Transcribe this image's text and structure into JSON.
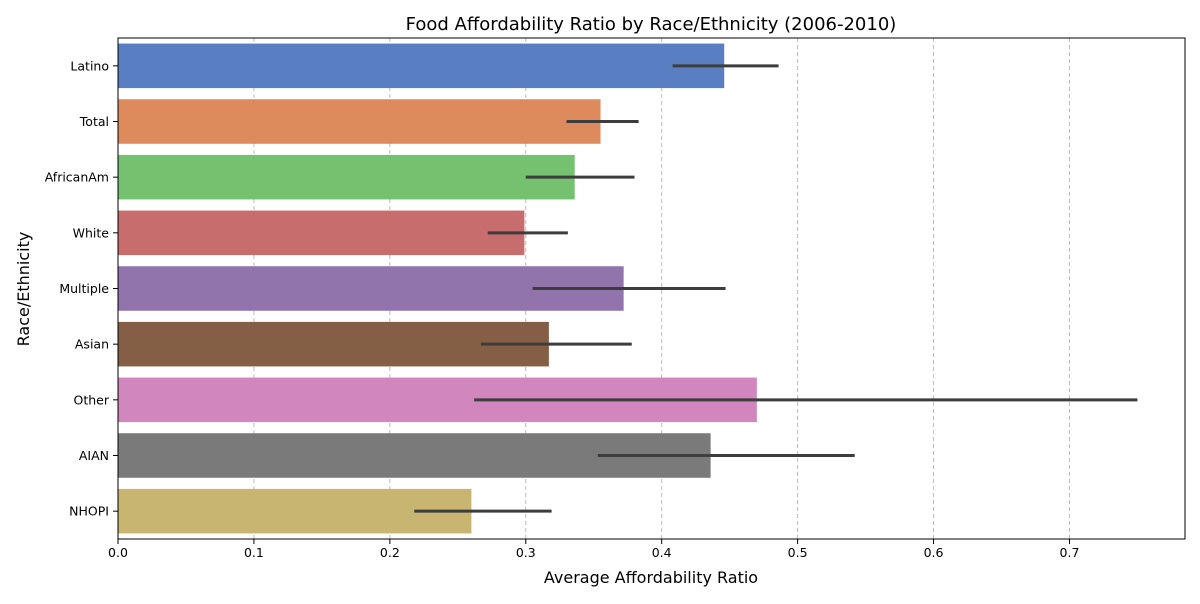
{
  "chart_data": {
    "type": "bar",
    "orientation": "horizontal",
    "title": "Food Affordability Ratio by Race/Ethnicity (2006-2010)",
    "xlabel": "Average Affordability Ratio",
    "ylabel": "Race/Ethnicity",
    "categories": [
      "Latino",
      "Total",
      "AfricanAm",
      "White",
      "Multiple",
      "Asian",
      "Other",
      "AIAN",
      "NHOPI"
    ],
    "values": [
      0.446,
      0.355,
      0.336,
      0.299,
      0.372,
      0.317,
      0.47,
      0.436,
      0.26
    ],
    "error_low": [
      0.408,
      0.33,
      0.3,
      0.272,
      0.305,
      0.267,
      0.262,
      0.353,
      0.218
    ],
    "error_high": [
      0.486,
      0.383,
      0.38,
      0.331,
      0.447,
      0.378,
      0.75,
      0.542,
      0.319
    ],
    "colors": [
      "#5a7ec2",
      "#dd8a5c",
      "#74c170",
      "#c76d6d",
      "#9174ab",
      "#845f45",
      "#d187bd",
      "#7a7a7a",
      "#c8b571"
    ],
    "error_color": "#3d3d3d",
    "xlim": [
      0,
      0.785
    ],
    "xticks": [
      0.0,
      0.1,
      0.2,
      0.3,
      0.4,
      0.5,
      0.6,
      0.7
    ],
    "xtick_labels": [
      "0.0",
      "0.1",
      "0.2",
      "0.3",
      "0.4",
      "0.5",
      "0.6",
      "0.7"
    ],
    "grid": "x-axis dashed",
    "legend": "none"
  }
}
